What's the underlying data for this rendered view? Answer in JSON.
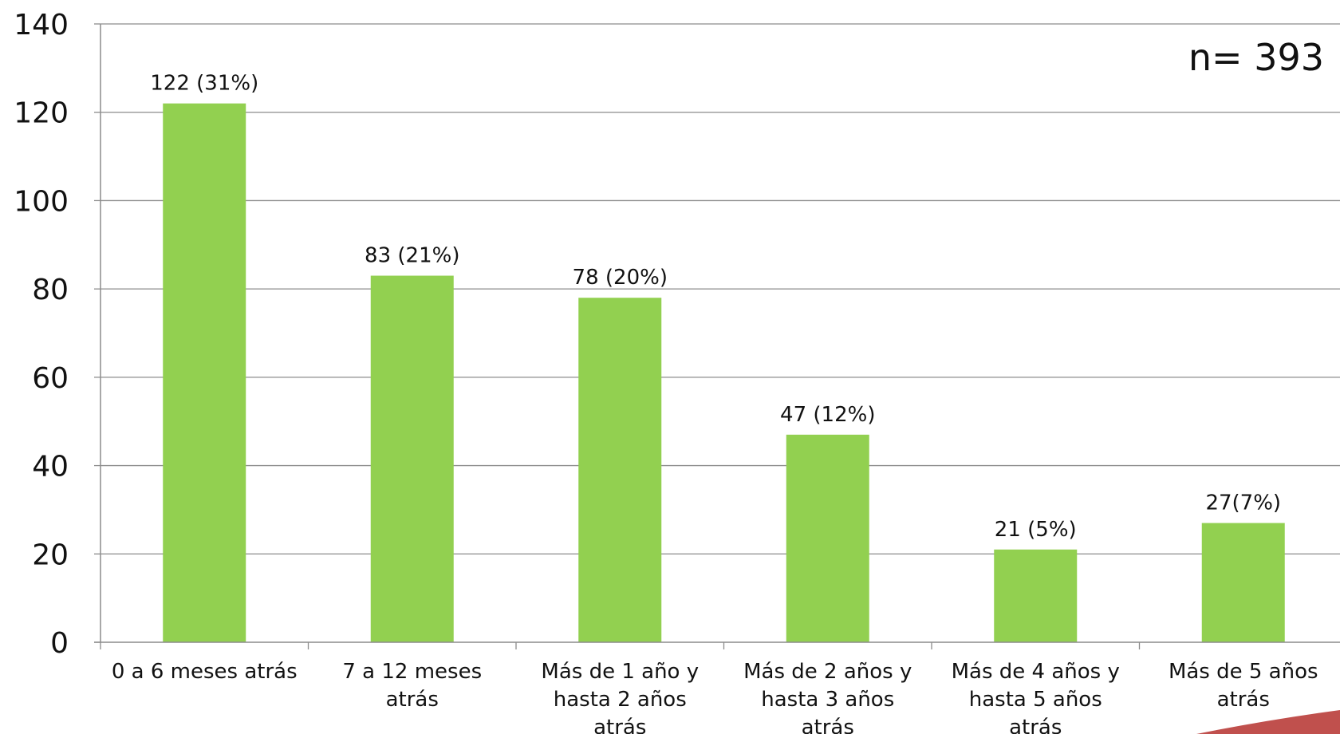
{
  "chart_data": {
    "type": "bar",
    "categories": [
      [
        "0 a 6 meses atrás"
      ],
      [
        "7 a 12 meses",
        "atrás"
      ],
      [
        "Más de 1 año y",
        "hasta 2 años",
        "atrás"
      ],
      [
        "Más de 2 años y",
        "hasta 3 años",
        "atrás"
      ],
      [
        "Más de 4 años y",
        "hasta 5 años",
        "atrás"
      ],
      [
        "Más de 5 años",
        "atrás"
      ]
    ],
    "values": [
      122,
      83,
      78,
      47,
      21,
      27
    ],
    "data_labels": [
      "122 (31%)",
      "83 (21%)",
      "78 (20%)",
      "47 (12%)",
      "21 (5%)",
      "27(7%)"
    ],
    "annotation": "n= 393",
    "ylim": [
      0,
      140
    ],
    "yticks": [
      0,
      20,
      40,
      60,
      80,
      100,
      120,
      140
    ],
    "grid": true,
    "bar_color": "#92d050",
    "accent_color": "#c0504d"
  }
}
